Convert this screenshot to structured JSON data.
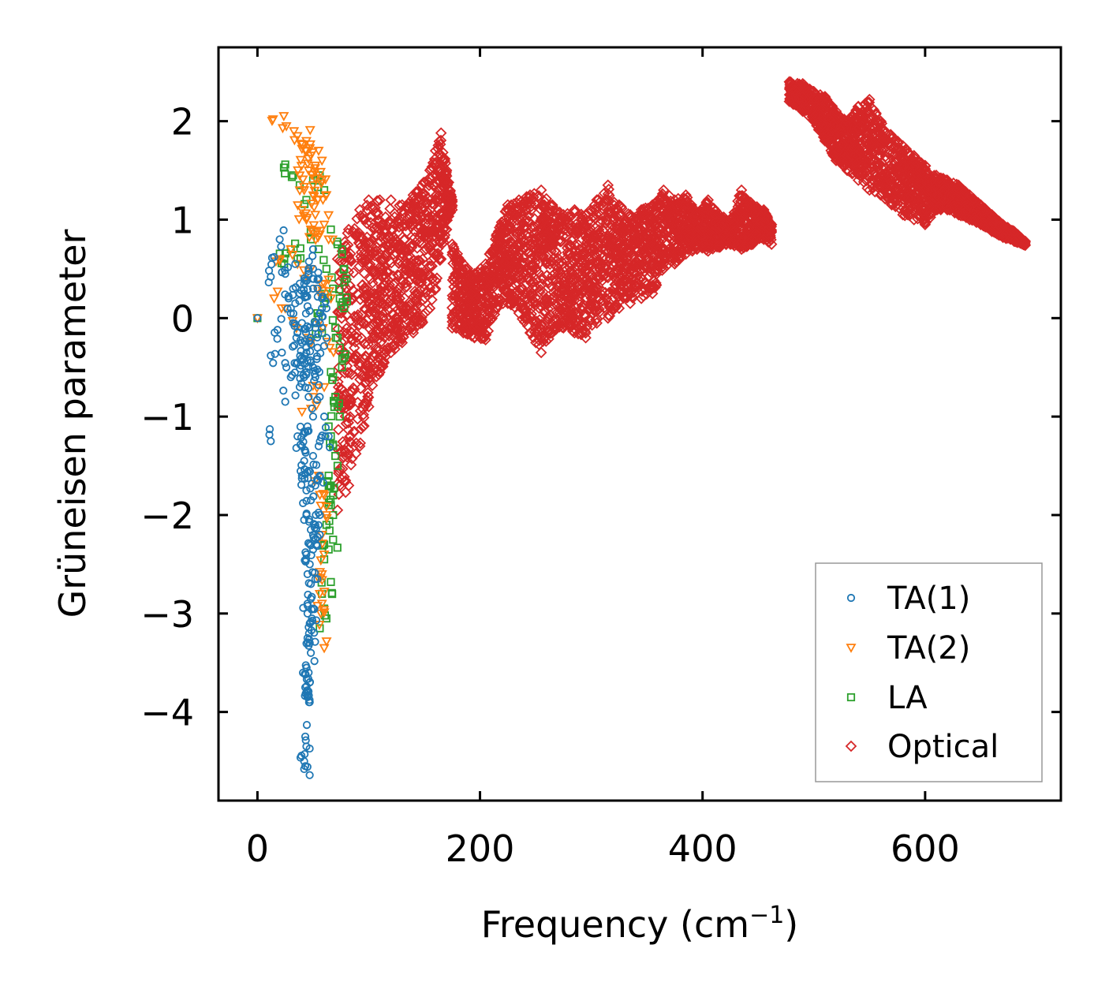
{
  "chart_data": {
    "type": "scatter",
    "title": "",
    "xlabel": "Frequency (cm",
    "xlabel_sup": "−1",
    "xlabel_suffix": ")",
    "ylabel": "Grüneisen parameter",
    "xlim": [
      -35,
      722
    ],
    "ylim": [
      -4.9,
      2.75
    ],
    "xticks": [
      0,
      200,
      400,
      600
    ],
    "xtick_labels": [
      "0",
      "200",
      "400",
      "600"
    ],
    "yticks": [
      -4,
      -3,
      -2,
      -1,
      0,
      1,
      2
    ],
    "ytick_labels": [
      "−4",
      "−3",
      "−2",
      "−1",
      "0",
      "1",
      "2"
    ],
    "grid": false,
    "legend_position": "lower-right",
    "series": [
      {
        "name": "TA(1)",
        "marker": "circle",
        "color": "#1f77b4",
        "x": [
          0,
          12,
          15,
          20,
          25,
          28,
          30,
          12,
          18,
          22,
          26,
          30,
          34,
          38,
          42,
          46,
          50,
          35,
          40,
          45,
          50,
          55,
          36,
          44,
          48,
          52,
          56,
          58,
          38,
          42,
          46,
          50,
          54,
          58,
          62,
          12,
          25,
          36,
          40,
          45,
          50,
          42,
          46,
          50,
          55,
          40,
          44,
          48,
          52,
          56,
          44,
          48,
          52,
          56,
          44,
          47,
          50,
          53,
          56,
          45,
          48,
          52,
          45,
          48,
          50,
          45,
          47,
          49,
          45,
          47,
          48,
          44,
          46,
          47,
          43,
          45,
          47,
          43,
          44,
          42,
          43,
          42,
          30,
          32,
          34,
          36,
          38,
          40,
          42,
          44,
          46,
          48,
          50,
          52,
          54,
          56,
          58,
          60,
          62,
          64
        ],
        "y": [
          0.0,
          0.42,
          0.62,
          0.8,
          0.45,
          0.2,
          0.1,
          -0.38,
          -0.12,
          -0.35,
          -0.5,
          -0.6,
          0.55,
          0.35,
          0.25,
          0.5,
          0.7,
          -0.2,
          -0.05,
          0.12,
          0.3,
          0.4,
          -0.45,
          -0.3,
          -0.2,
          -0.1,
          0.05,
          0.2,
          -0.7,
          -0.6,
          -0.8,
          -0.5,
          -0.3,
          -0.1,
          0.1,
          -1.25,
          -0.85,
          -1.2,
          -1.3,
          -1.1,
          -1.0,
          -1.45,
          -1.55,
          -1.4,
          -1.3,
          -1.6,
          -1.75,
          -1.85,
          -1.7,
          -1.6,
          -2.0,
          -2.15,
          -2.1,
          -2.0,
          -2.4,
          -2.5,
          -2.35,
          -2.3,
          -2.2,
          -2.6,
          -2.7,
          -2.65,
          -2.9,
          -2.85,
          -2.95,
          -3.0,
          -3.1,
          -3.05,
          -3.25,
          -3.3,
          -3.4,
          -3.55,
          -3.6,
          -3.7,
          -3.75,
          -3.85,
          -3.9,
          -4.25,
          -4.35,
          -4.5,
          -4.55,
          -4.58,
          0.05,
          -0.05,
          0.15,
          -0.15,
          0.25,
          -0.25,
          0.35,
          -0.35,
          0.45,
          -0.45,
          0.5,
          -0.6,
          0.3,
          -0.8,
          0.1,
          -1.0,
          -0.2,
          -1.2
        ]
      },
      {
        "name": "TA(2)",
        "marker": "triangle-down",
        "color": "#ff7f0e",
        "x": [
          0,
          14,
          26,
          36,
          40,
          44,
          48,
          52,
          55,
          58,
          38,
          42,
          46,
          50,
          54,
          58,
          62,
          40,
          44,
          48,
          52,
          56,
          60,
          64,
          20,
          30,
          36,
          42,
          48,
          54,
          60,
          66,
          15,
          25,
          35,
          45,
          55,
          65,
          40,
          50,
          60,
          55,
          60,
          62,
          58,
          60,
          58,
          56,
          57,
          60,
          58
        ],
        "y": [
          0.0,
          2.02,
          1.95,
          1.85,
          1.72,
          1.8,
          1.65,
          1.55,
          1.7,
          1.6,
          1.45,
          1.3,
          1.5,
          1.35,
          1.2,
          1.4,
          1.25,
          1.1,
          1.0,
          0.9,
          1.05,
          0.85,
          0.95,
          0.8,
          0.6,
          0.7,
          0.55,
          0.4,
          0.5,
          0.3,
          0.35,
          0.2,
          0.2,
          0.1,
          -0.1,
          -0.2,
          -0.05,
          -0.3,
          -0.95,
          -0.8,
          -0.7,
          -1.6,
          -1.8,
          -2.0,
          -2.2,
          -2.4,
          -2.6,
          -2.8,
          -3.0,
          -3.35,
          -2.9
        ]
      },
      {
        "name": "LA",
        "marker": "square",
        "color": "#2ca02c",
        "x": [
          0,
          25,
          32,
          38,
          44,
          50,
          56,
          60,
          66,
          72,
          76,
          78,
          80,
          24,
          30,
          36,
          48,
          55,
          62,
          68,
          74,
          78,
          70,
          72,
          74,
          76,
          78,
          68,
          70,
          72,
          74,
          64,
          66,
          68,
          70,
          72,
          64,
          66,
          68,
          66,
          68,
          62,
          60,
          64,
          68,
          60,
          66,
          58,
          62,
          56,
          60,
          52,
          54,
          58,
          60
        ],
        "y": [
          0.0,
          1.56,
          1.45,
          1.35,
          1.2,
          1.4,
          1.45,
          1.3,
          0.9,
          0.75,
          0.65,
          0.5,
          0.4,
          0.55,
          0.7,
          0.6,
          0.8,
          0.7,
          0.5,
          0.3,
          0.2,
          0.1,
          -0.1,
          -0.2,
          -0.3,
          -0.5,
          -0.4,
          -0.6,
          -0.8,
          -0.9,
          -1.0,
          -1.1,
          -1.2,
          -1.3,
          -1.4,
          -1.5,
          -1.6,
          -1.7,
          -1.8,
          -1.9,
          -2.0,
          -2.1,
          -2.3,
          -2.35,
          -2.25,
          -2.45,
          -2.68,
          -2.8,
          -3.05,
          -3.15,
          -2.95,
          -0.05,
          0.05,
          -0.15,
          0.15
        ]
      },
      {
        "name": "Optical",
        "marker": "diamond",
        "color": "#d62728",
        "bands": [
          {
            "x": [
              72,
              82,
              92,
              100,
              110,
              120,
              130,
              140,
              148,
              155,
              160,
              165,
              170,
              175
            ],
            "lo": [
              -1.95,
              -1.7,
              -1.3,
              -0.9,
              -0.55,
              -0.35,
              -0.25,
              -0.15,
              -0.05,
              0.1,
              0.3,
              0.6,
              0.9,
              1.1
            ],
            "hi": [
              0.6,
              0.9,
              1.1,
              1.2,
              1.2,
              1.2,
              1.15,
              1.25,
              1.35,
              1.5,
              1.7,
              1.88,
              1.5,
              1.2
            ]
          },
          {
            "x": [
              175,
              185,
              195,
              205,
              215,
              225,
              235,
              245,
              255,
              265,
              275,
              285,
              295,
              305,
              315,
              325,
              335,
              345,
              355,
              365,
              375,
              385,
              395,
              405,
              415,
              425,
              435,
              445,
              455,
              462
            ],
            "lo": [
              -0.1,
              -0.15,
              -0.2,
              -0.22,
              0.1,
              0.15,
              0.05,
              -0.15,
              -0.35,
              -0.15,
              -0.1,
              -0.15,
              -0.2,
              -0.05,
              0.0,
              0.1,
              0.15,
              0.2,
              0.25,
              0.5,
              0.55,
              0.65,
              0.7,
              0.68,
              0.72,
              0.75,
              0.7,
              0.75,
              0.8,
              0.75
            ],
            "hi": [
              0.75,
              0.55,
              0.45,
              0.55,
              0.85,
              1.15,
              1.2,
              1.25,
              1.3,
              1.15,
              1.05,
              1.1,
              1.05,
              1.2,
              1.35,
              1.15,
              1.05,
              1.1,
              1.15,
              1.3,
              1.2,
              1.25,
              1.05,
              1.2,
              1.05,
              1.0,
              1.3,
              1.15,
              1.1,
              0.95
            ]
          },
          {
            "x": [
              478,
              490,
              500,
              510,
              520,
              530,
              540,
              550,
              560,
              570,
              580,
              590,
              600,
              610,
              620,
              630,
              640,
              650,
              660,
              670,
              680,
              690
            ],
            "lo": [
              2.2,
              2.1,
              2.0,
              1.8,
              1.6,
              1.5,
              1.4,
              1.3,
              1.25,
              1.15,
              1.05,
              1.0,
              0.95,
              1.1,
              1.1,
              1.05,
              1.0,
              0.95,
              0.88,
              0.82,
              0.78,
              0.74
            ],
            "hi": [
              2.4,
              2.38,
              2.3,
              2.25,
              2.1,
              2.0,
              2.15,
              2.22,
              2.0,
              1.85,
              1.75,
              1.65,
              1.55,
              1.45,
              1.4,
              1.35,
              1.25,
              1.15,
              1.05,
              0.95,
              0.88,
              0.78
            ]
          }
        ]
      }
    ]
  }
}
